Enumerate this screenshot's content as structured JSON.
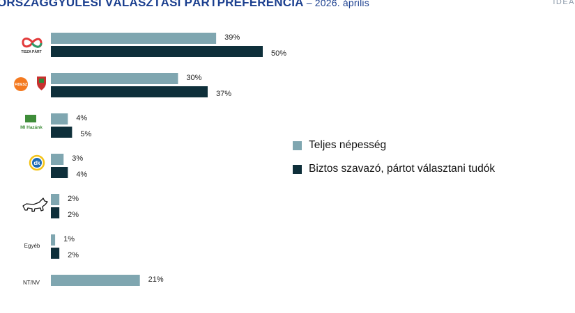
{
  "header": {
    "title_main": "ORSZÁGGYŰLÉSI VÁLASZTÁSI PÁRTPREFERENCIA",
    "title_sub": " – 2026. április",
    "brand": "IDEA"
  },
  "colors": {
    "series1": "#7fa6b0",
    "series2": "#0e2f3a"
  },
  "chart_data": {
    "type": "bar",
    "orientation": "horizontal",
    "categories": [
      "TISZA PÁRT",
      "FIDESZ",
      "MI Hazánk",
      "dk",
      "MKKP",
      "Egyéb",
      "NT/NV"
    ],
    "series": [
      {
        "name": "Teljes népesség",
        "values": [
          39,
          30,
          4,
          3,
          2,
          1,
          21
        ]
      },
      {
        "name": "Biztos szavazó, pártot választani tudók",
        "values": [
          50,
          37,
          5,
          4,
          2,
          2,
          null
        ]
      }
    ],
    "value_suffix": "%",
    "legend": "right"
  }
}
